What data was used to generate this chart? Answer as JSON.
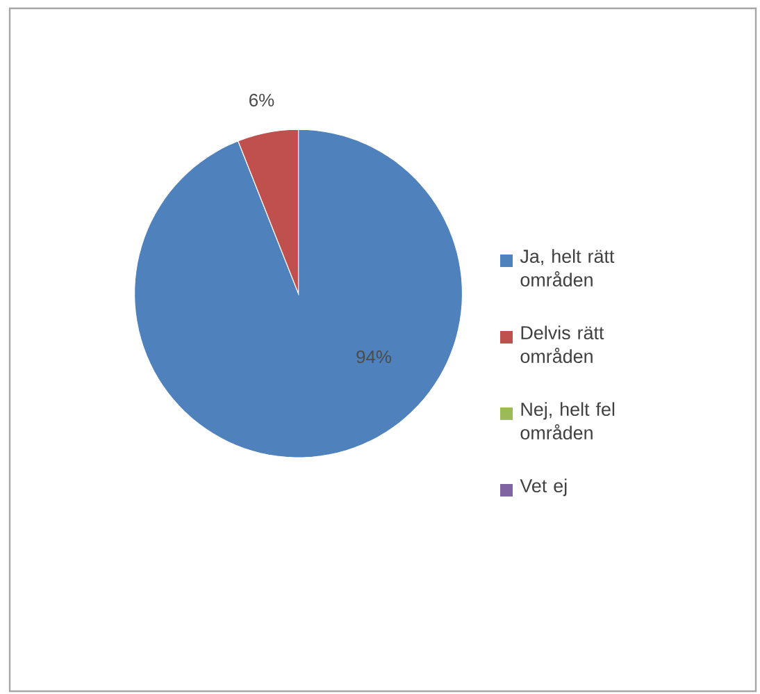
{
  "chart_data": {
    "type": "pie",
    "categories": [
      "Ja, helt rätt områden",
      "Delvis rätt områden",
      "Nej, helt fel områden",
      "Vet ej"
    ],
    "values": [
      94,
      6,
      0,
      0
    ],
    "colors": [
      "#4f81bd",
      "#c0504d",
      "#9bbb59",
      "#8064a2"
    ],
    "value_labels": [
      "94%",
      "6%",
      null,
      null
    ],
    "legend": "right"
  }
}
